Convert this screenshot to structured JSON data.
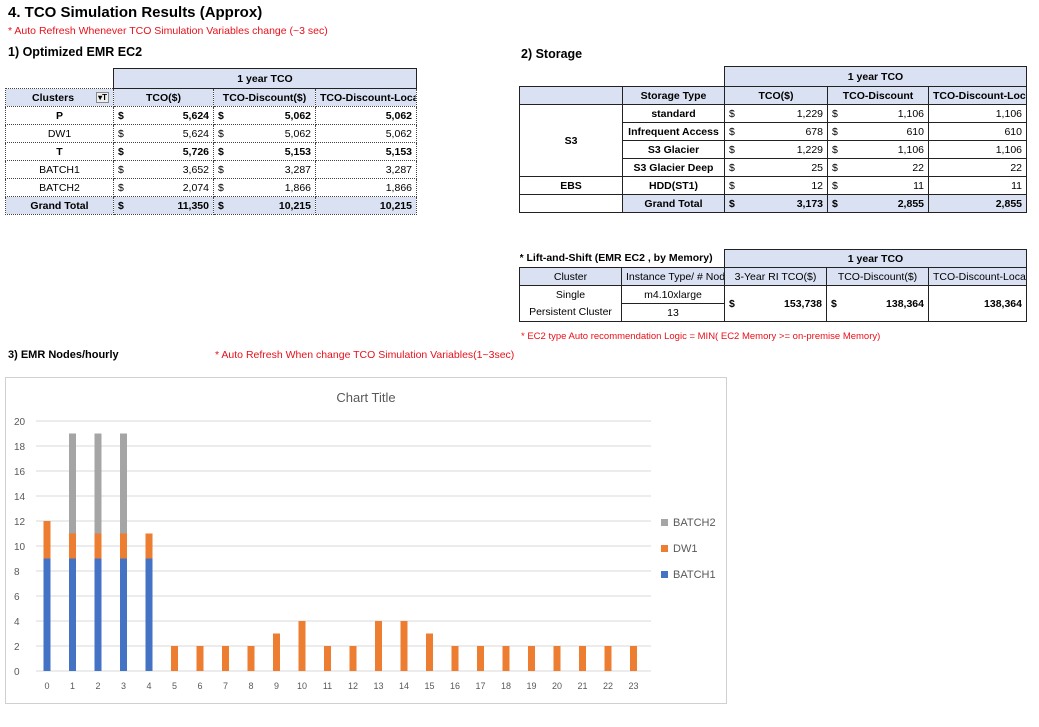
{
  "title": "4. TCO Simulation Results (Approx)",
  "note_refresh": "* Auto Refresh Whenever TCO Simulation Variables change (~3 sec)",
  "ec2": {
    "heading": "1) Optimized  EMR EC2",
    "group": "1 year TCO",
    "cols": [
      "Clusters",
      "TCO($)",
      "TCO-Discount($)",
      "TCO-Discount-Local"
    ],
    "rows": [
      {
        "c": "P",
        "t": "5,624",
        "d": "5,062",
        "l": "5,062",
        "bold": true
      },
      {
        "c": "DW1",
        "t": "5,624",
        "d": "5,062",
        "l": "5,062",
        "bold": false
      },
      {
        "c": "T",
        "t": "5,726",
        "d": "5,153",
        "l": "5,153",
        "bold": true
      },
      {
        "c": "BATCH1",
        "t": "3,652",
        "d": "3,287",
        "l": "3,287",
        "bold": false
      },
      {
        "c": "BATCH2",
        "t": "2,074",
        "d": "1,866",
        "l": "1,866",
        "bold": false
      }
    ],
    "total": {
      "c": "Grand Total",
      "t": "11,350",
      "d": "10,215",
      "l": "10,215"
    },
    "currency": "$"
  },
  "storage": {
    "heading": "2) Storage",
    "group": "1 year TCO",
    "cols": [
      "Storage Type",
      "TCO($)",
      "TCO-Discount",
      "TCO-Discount-Local"
    ],
    "groups": [
      "S3",
      "EBS"
    ],
    "rows": [
      {
        "s": "standard",
        "t": "1,229",
        "d": "1,106",
        "l": "1,106"
      },
      {
        "s": "Infrequent Access",
        "t": "678",
        "d": "610",
        "l": "610"
      },
      {
        "s": "S3 Glacier",
        "t": "1,229",
        "d": "1,106",
        "l": "1,106"
      },
      {
        "s": "S3 Glacier Deep",
        "t": "25",
        "d": "22",
        "l": "22"
      },
      {
        "s": "HDD(ST1)",
        "t": "12",
        "d": "11",
        "l": "11"
      }
    ],
    "total": {
      "s": "Grand Total",
      "t": "3,173",
      "d": "2,855",
      "l": "2,855"
    }
  },
  "lift": {
    "heading": "* Lift-and-Shift (EMR EC2 , by Memory)",
    "group": "1 year TCO",
    "cols": [
      "Cluster",
      "Instance Type/ # Node",
      "3-Year RI TCO($)",
      "TCO-Discount($)",
      "TCO-Discount-Local"
    ],
    "cluster_line1": "Single",
    "cluster_line2": "Persistent Cluster",
    "instance": "m4.10xlarge",
    "nodes": "13",
    "ri": "153,738",
    "disc": "138,364",
    "local": "138,364",
    "note": "* EC2 type Auto recommendation Logic  = MIN( EC2 Memory  >= on-premise Memory)"
  },
  "nodes": {
    "heading": "3) EMR Nodes/hourly",
    "note": "* Auto Refresh When change TCO Simulation Variables(1~3sec)"
  },
  "chart_data": {
    "type": "bar",
    "stacked": true,
    "title": "Chart Title",
    "xlabel": "",
    "ylabel": "",
    "ylim": [
      0,
      20
    ],
    "yticks": [
      0,
      2,
      4,
      6,
      8,
      10,
      12,
      14,
      16,
      18,
      20
    ],
    "grid": true,
    "legend": "right",
    "categories": [
      "0",
      "1",
      "2",
      "3",
      "4",
      "5",
      "6",
      "7",
      "8",
      "9",
      "10",
      "11",
      "12",
      "13",
      "14",
      "15",
      "16",
      "17",
      "18",
      "19",
      "20",
      "21",
      "22",
      "23"
    ],
    "series": [
      {
        "name": "BATCH1",
        "color": "#4472c4",
        "values": [
          9,
          9,
          9,
          9,
          9,
          0,
          0,
          0,
          0,
          0,
          0,
          0,
          0,
          0,
          0,
          0,
          0,
          0,
          0,
          0,
          0,
          0,
          0,
          0
        ]
      },
      {
        "name": "DW1",
        "color": "#ed7d31",
        "values": [
          3,
          2,
          2,
          2,
          2,
          2,
          2,
          2,
          2,
          3,
          4,
          2,
          2,
          4,
          4,
          3,
          2,
          2,
          2,
          2,
          2,
          2,
          2,
          2
        ]
      },
      {
        "name": "BATCH2",
        "color": "#a5a5a5",
        "values": [
          0,
          8,
          8,
          8,
          0,
          0,
          0,
          0,
          0,
          0,
          0,
          0,
          0,
          0,
          0,
          0,
          0,
          0,
          0,
          0,
          0,
          0,
          0,
          0
        ]
      }
    ]
  }
}
